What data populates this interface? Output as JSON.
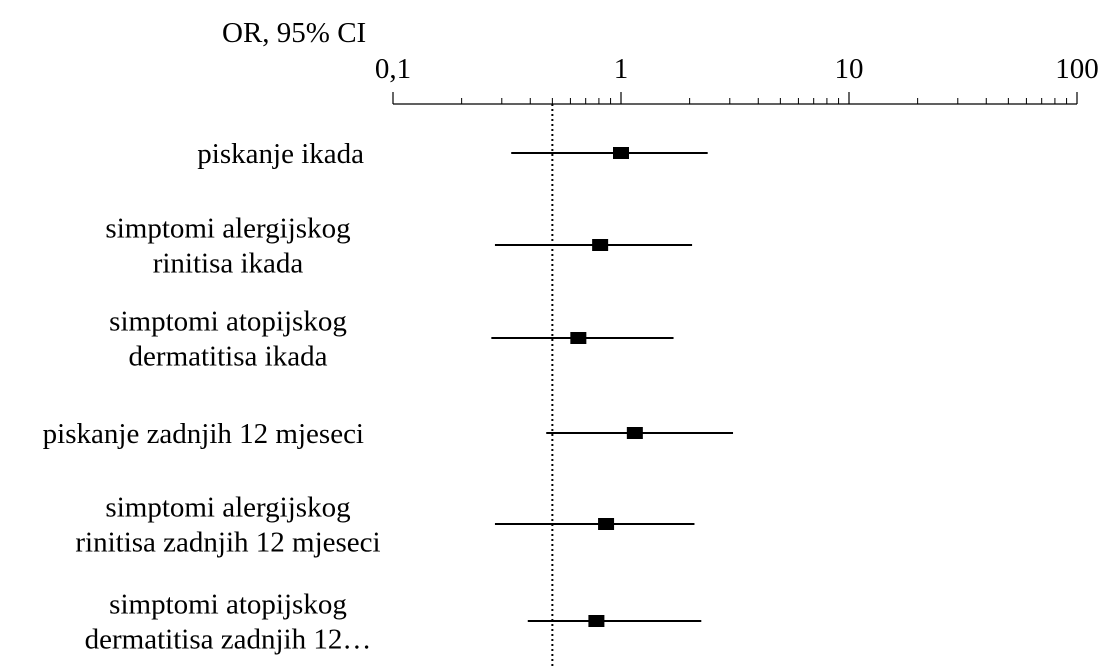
{
  "chart_data": {
    "type": "forest",
    "title": "OR, 95% CI",
    "x_scale": "log",
    "xlim": [
      0.1,
      100
    ],
    "x_ticks": [
      {
        "value": 0.1,
        "label": "0,1"
      },
      {
        "value": 1,
        "label": "1"
      },
      {
        "value": 10,
        "label": "10"
      },
      {
        "value": 100,
        "label": "100"
      }
    ],
    "reference_line": {
      "value": 0.5,
      "style": "dotted"
    },
    "rows": [
      {
        "label_lines": [
          "piskanje ikada"
        ],
        "or": 1.0,
        "ci_low": 0.33,
        "ci_high": 2.4
      },
      {
        "label_lines": [
          "simptomi alergijskog",
          "rinitisa ikada"
        ],
        "or": 0.81,
        "ci_low": 0.28,
        "ci_high": 2.05
      },
      {
        "label_lines": [
          "simptomi atopijskog",
          "dermatitisa ikada"
        ],
        "or": 0.65,
        "ci_low": 0.27,
        "ci_high": 1.7
      },
      {
        "label_lines": [
          "piskanje zadnjih 12 mjeseci"
        ],
        "or": 1.15,
        "ci_low": 0.47,
        "ci_high": 3.1
      },
      {
        "label_lines": [
          "simptomi alergijskog",
          "rinitisa zadnjih 12 mjeseci"
        ],
        "or": 0.86,
        "ci_low": 0.28,
        "ci_high": 2.1
      },
      {
        "label_lines": [
          "simptomi atopijskog",
          "dermatitisa zadnjih 12…"
        ],
        "or": 0.78,
        "ci_low": 0.39,
        "ci_high": 2.25
      }
    ]
  }
}
